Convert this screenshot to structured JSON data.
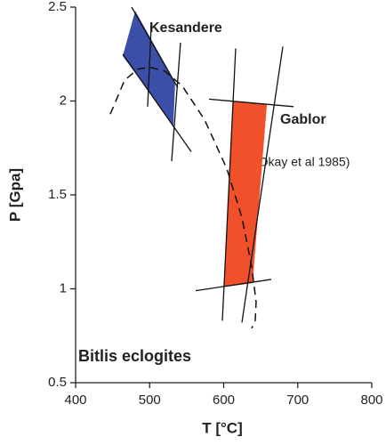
{
  "chart_data": {
    "type": "pt-diagram",
    "xlabel": "T [°C]",
    "ylabel": "P [Gpa]",
    "xlim": [
      400,
      800
    ],
    "xticks": [
      400,
      500,
      600,
      700,
      800
    ],
    "ylim": [
      0.5,
      2.5
    ],
    "yticks": [
      0.5,
      1,
      1.5,
      2,
      2.5
    ],
    "polygons": [
      {
        "name": "Kesandere",
        "color": "#3c4fa8",
        "x": [
          480.5,
          534.5,
          532,
          463.7
        ],
        "y": [
          2.48,
          2.1,
          1.87,
          2.24
        ]
      },
      {
        "name": "Gablor",
        "color": "#f0502a",
        "x": [
          612.6,
          658.3,
          639,
          600.6
        ],
        "y": [
          2.0,
          1.98,
          1.03,
          1.01
        ]
      }
    ],
    "lines": [
      {
        "x": [
          475.7,
          538.1
        ],
        "y": [
          2.5,
          2.07
        ]
      },
      {
        "x": [
          463.7,
          556.2
        ],
        "y": [
          2.25,
          1.73
        ]
      },
      {
        "x": [
          502.1,
          497.3
        ],
        "y": [
          2.4,
          1.97
        ]
      },
      {
        "x": [
          541.7,
          529.7
        ],
        "y": [
          2.31,
          1.68
        ]
      },
      {
        "x": [
          580.2,
          694.3
        ],
        "y": [
          2.01,
          1.97
        ]
      },
      {
        "x": [
          562.2,
          664.3
        ],
        "y": [
          0.99,
          1.05
        ]
      },
      {
        "x": [
          616.2,
          598.2
        ],
        "y": [
          2.28,
          0.83
        ]
      },
      {
        "x": [
          679.9,
          624.6
        ],
        "y": [
          2.29,
          0.82
        ]
      }
    ],
    "curve": {
      "x": [
        446.8,
        466.1,
        484.1,
        499.7,
        520.1,
        544.1,
        574.2,
        604.2,
        624.6,
        637.8,
        643.8,
        642.6,
        637.8
      ],
      "y": [
        1.93,
        2.11,
        2.17,
        2.18,
        2.16,
        2.08,
        1.9,
        1.64,
        1.38,
        1.12,
        0.93,
        0.83,
        0.79
      ]
    },
    "annotations": [
      "(Okay et al 1985)",
      "Bitlis eclogites"
    ]
  }
}
